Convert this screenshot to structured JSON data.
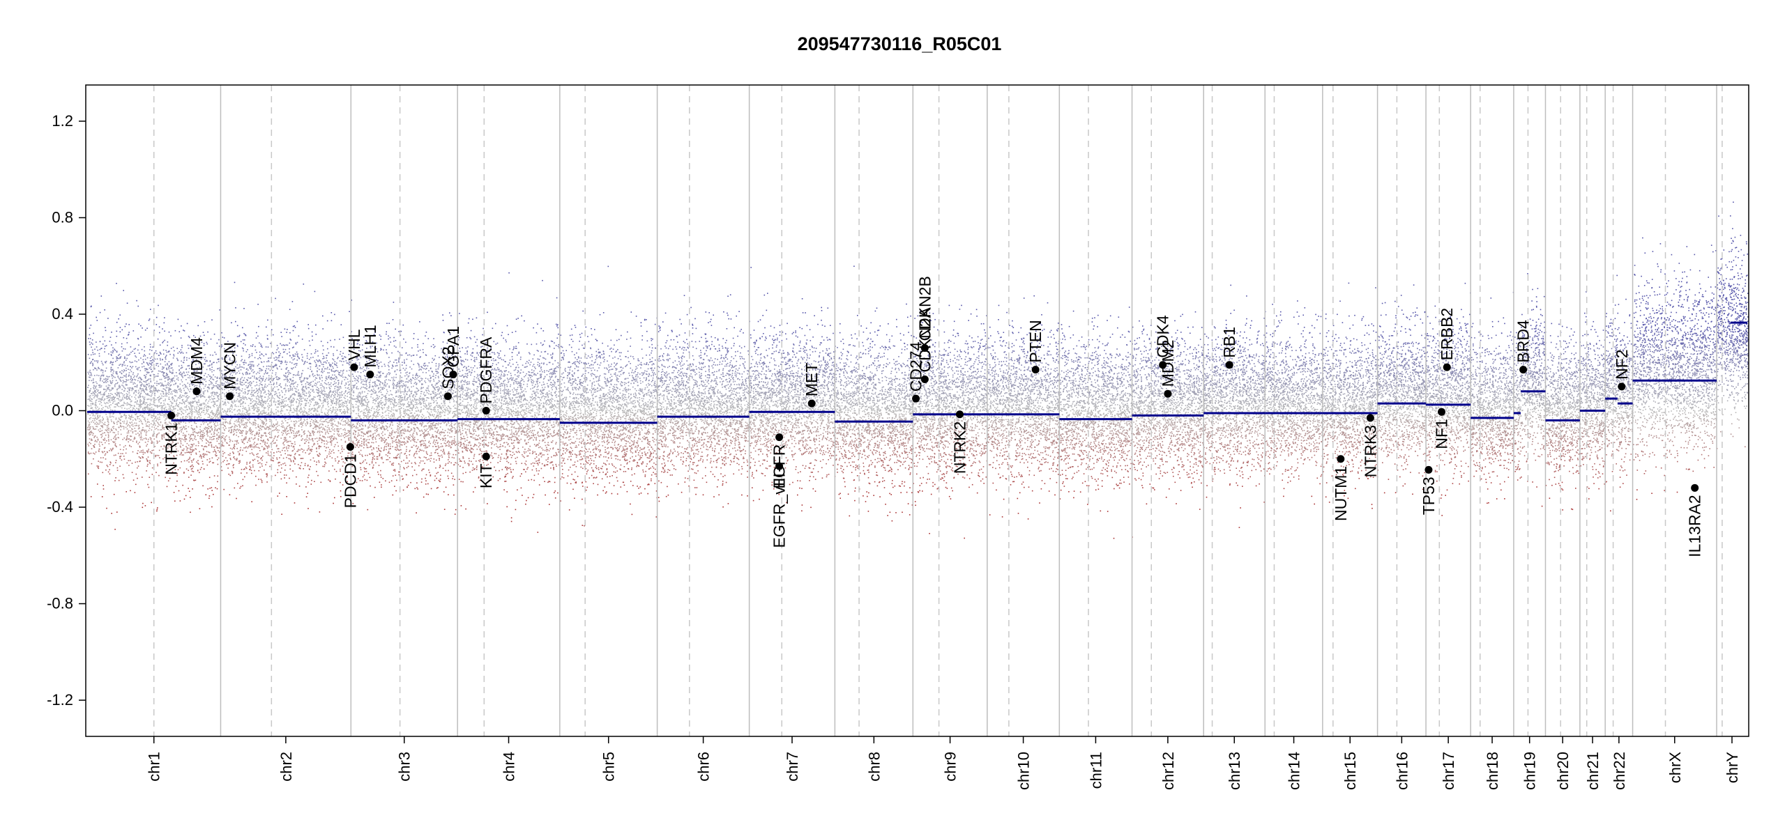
{
  "chart_data": {
    "type": "scatter",
    "title": "209547730116_R05C01",
    "xlabel": "",
    "ylabel": "",
    "ylim": [
      -1.35,
      1.35
    ],
    "y_ticks": [
      "1.2",
      "0.8",
      "0.4",
      "0.0",
      "-0.4",
      "-0.8",
      "-1.2"
    ],
    "grid": false,
    "colors": {
      "gain": "#5555aa",
      "loss": "#aa3333",
      "neutral": "#b8b8b8",
      "segment": "#00008b",
      "gene_point": "#000000",
      "boundary": "#bdbdbd"
    },
    "chromosomes": [
      {
        "name": "chr1",
        "size": 248,
        "centro": 0.5,
        "segments": [
          {
            "from": 0,
            "to": 0.63,
            "value": -0.005
          },
          {
            "from": 0.63,
            "to": 1,
            "value": -0.04
          }
        ]
      },
      {
        "name": "chr2",
        "size": 242,
        "centro": 0.39,
        "segments": [
          {
            "from": 0,
            "to": 1,
            "value": -0.025
          }
        ]
      },
      {
        "name": "chr3",
        "size": 198,
        "centro": 0.46,
        "segments": [
          {
            "from": 0,
            "to": 1,
            "value": -0.04
          }
        ]
      },
      {
        "name": "chr4",
        "size": 190,
        "centro": 0.26,
        "segments": [
          {
            "from": 0,
            "to": 1,
            "value": -0.035
          }
        ]
      },
      {
        "name": "chr5",
        "size": 181,
        "centro": 0.26,
        "segments": [
          {
            "from": 0,
            "to": 1,
            "value": -0.05
          }
        ]
      },
      {
        "name": "chr6",
        "size": 171,
        "centro": 0.35,
        "segments": [
          {
            "from": 0,
            "to": 1,
            "value": -0.025
          }
        ]
      },
      {
        "name": "chr7",
        "size": 159,
        "centro": 0.38,
        "segments": [
          {
            "from": 0,
            "to": 1,
            "value": -0.005
          }
        ]
      },
      {
        "name": "chr8",
        "size": 145,
        "centro": 0.31,
        "segments": [
          {
            "from": 0,
            "to": 1,
            "value": -0.045
          }
        ]
      },
      {
        "name": "chr9",
        "size": 138,
        "centro": 0.35,
        "segments": [
          {
            "from": 0,
            "to": 1,
            "value": -0.015
          }
        ]
      },
      {
        "name": "chr10",
        "size": 134,
        "centro": 0.3,
        "segments": [
          {
            "from": 0,
            "to": 1,
            "value": -0.015
          }
        ]
      },
      {
        "name": "chr11",
        "size": 135,
        "centro": 0.4,
        "segments": [
          {
            "from": 0,
            "to": 1,
            "value": -0.035
          }
        ]
      },
      {
        "name": "chr12",
        "size": 133,
        "centro": 0.27,
        "segments": [
          {
            "from": 0,
            "to": 1,
            "value": -0.02
          }
        ]
      },
      {
        "name": "chr13",
        "size": 114,
        "centro": 0.14,
        "segments": [
          {
            "from": 0,
            "to": 1,
            "value": -0.01
          }
        ]
      },
      {
        "name": "chr14",
        "size": 107,
        "centro": 0.16,
        "segments": [
          {
            "from": 0,
            "to": 1,
            "value": -0.01
          }
        ]
      },
      {
        "name": "chr15",
        "size": 102,
        "centro": 0.19,
        "segments": [
          {
            "from": 0,
            "to": 1,
            "value": -0.01
          }
        ]
      },
      {
        "name": "chr16",
        "size": 90,
        "centro": 0.4,
        "segments": [
          {
            "from": 0,
            "to": 1,
            "value": 0.03
          }
        ]
      },
      {
        "name": "chr17",
        "size": 83,
        "centro": 0.3,
        "segments": [
          {
            "from": 0,
            "to": 1,
            "value": 0.025
          }
        ]
      },
      {
        "name": "chr18",
        "size": 80,
        "centro": 0.22,
        "segments": [
          {
            "from": 0,
            "to": 1,
            "value": -0.03
          }
        ]
      },
      {
        "name": "chr19",
        "size": 59,
        "centro": 0.45,
        "segments": [
          {
            "from": 0,
            "to": 0.22,
            "value": -0.01
          },
          {
            "from": 0.22,
            "to": 1,
            "value": 0.08
          }
        ]
      },
      {
        "name": "chr20",
        "size": 64,
        "centro": 0.44,
        "segments": [
          {
            "from": 0,
            "to": 1,
            "value": -0.04
          }
        ]
      },
      {
        "name": "chr21",
        "size": 47,
        "centro": 0.27,
        "segments": [
          {
            "from": 0,
            "to": 1,
            "value": 0.0
          }
        ]
      },
      {
        "name": "chr22",
        "size": 51,
        "centro": 0.29,
        "segments": [
          {
            "from": 0,
            "to": 0.45,
            "value": 0.05
          },
          {
            "from": 0.45,
            "to": 1,
            "value": 0.03
          }
        ]
      },
      {
        "name": "chrX",
        "size": 156,
        "centro": 0.39,
        "segments": [
          {
            "from": 0,
            "to": 1,
            "value": 0.125
          }
        ]
      },
      {
        "name": "chrY",
        "size": 57,
        "centro": 0.18,
        "segments": [
          {
            "from": 0.45,
            "to": 1,
            "value": 0.365
          }
        ]
      }
    ],
    "genes": [
      {
        "name": "NTRK1",
        "chr": "chr1",
        "pos": 0.63,
        "value": -0.02,
        "label_side": "below"
      },
      {
        "name": "MDM4",
        "chr": "chr1",
        "pos": 0.82,
        "value": 0.08,
        "label_side": "above"
      },
      {
        "name": "MYCN",
        "chr": "chr2",
        "pos": 0.07,
        "value": 0.06,
        "label_side": "above"
      },
      {
        "name": "PDCD1",
        "chr": "chr2",
        "pos": 0.995,
        "value": -0.15,
        "label_side": "below"
      },
      {
        "name": "VHL",
        "chr": "chr3",
        "pos": 0.03,
        "value": 0.18,
        "label_side": "above"
      },
      {
        "name": "MLH1",
        "chr": "chr3",
        "pos": 0.18,
        "value": 0.15,
        "label_side": "above"
      },
      {
        "name": "SOX2",
        "chr": "chr3",
        "pos": 0.91,
        "value": 0.06,
        "label_side": "above"
      },
      {
        "name": "GPA1",
        "chr": "chr3",
        "pos": 0.96,
        "value": 0.15,
        "label_side": "above"
      },
      {
        "name": "PDGFRA",
        "chr": "chr4",
        "pos": 0.28,
        "value": 0.0,
        "label_side": "above"
      },
      {
        "name": "KIT",
        "chr": "chr4",
        "pos": 0.28,
        "value": -0.19,
        "label_side": "below"
      },
      {
        "name": "EGFR_vIII",
        "chr": "chr7",
        "pos": 0.35,
        "value": -0.23,
        "label_side": "below"
      },
      {
        "name": "EGFR",
        "chr": "chr7",
        "pos": 0.35,
        "value": -0.11,
        "label_side": "below"
      },
      {
        "name": "MET",
        "chr": "chr7",
        "pos": 0.73,
        "value": 0.03,
        "label_side": "above"
      },
      {
        "name": "CD274",
        "chr": "chr9",
        "pos": 0.04,
        "value": 0.05,
        "label_side": "above"
      },
      {
        "name": "CDKN2A",
        "chr": "chr9",
        "pos": 0.16,
        "value": 0.13,
        "label_side": "above"
      },
      {
        "name": "CDKN2B",
        "chr": "chr9",
        "pos": 0.16,
        "value": 0.26,
        "label_side": "above"
      },
      {
        "name": "NTRK2",
        "chr": "chr9",
        "pos": 0.63,
        "value": -0.015,
        "label_side": "below"
      },
      {
        "name": "PTEN",
        "chr": "chr10",
        "pos": 0.67,
        "value": 0.17,
        "label_side": "above"
      },
      {
        "name": "CDK4",
        "chr": "chr12",
        "pos": 0.43,
        "value": 0.19,
        "label_side": "above"
      },
      {
        "name": "MDM2",
        "chr": "chr12",
        "pos": 0.5,
        "value": 0.07,
        "label_side": "above"
      },
      {
        "name": "RB1",
        "chr": "chr13",
        "pos": 0.42,
        "value": 0.19,
        "label_side": "above"
      },
      {
        "name": "NUTM1",
        "chr": "chr15",
        "pos": 0.33,
        "value": -0.2,
        "label_side": "below"
      },
      {
        "name": "NTRK3",
        "chr": "chr15",
        "pos": 0.87,
        "value": -0.03,
        "label_side": "below"
      },
      {
        "name": "TP53",
        "chr": "chr17",
        "pos": 0.06,
        "value": -0.245,
        "label_side": "below"
      },
      {
        "name": "NF1",
        "chr": "chr17",
        "pos": 0.35,
        "value": -0.005,
        "label_side": "below"
      },
      {
        "name": "ERBB2",
        "chr": "chr17",
        "pos": 0.47,
        "value": 0.18,
        "label_side": "above"
      },
      {
        "name": "BRD4",
        "chr": "chr19",
        "pos": 0.3,
        "value": 0.17,
        "label_side": "above"
      },
      {
        "name": "NF2",
        "chr": "chr22",
        "pos": 0.6,
        "value": 0.1,
        "label_side": "above"
      },
      {
        "name": "IL13RA2",
        "chr": "chrX",
        "pos": 0.74,
        "value": -0.32,
        "label_side": "below"
      }
    ]
  }
}
